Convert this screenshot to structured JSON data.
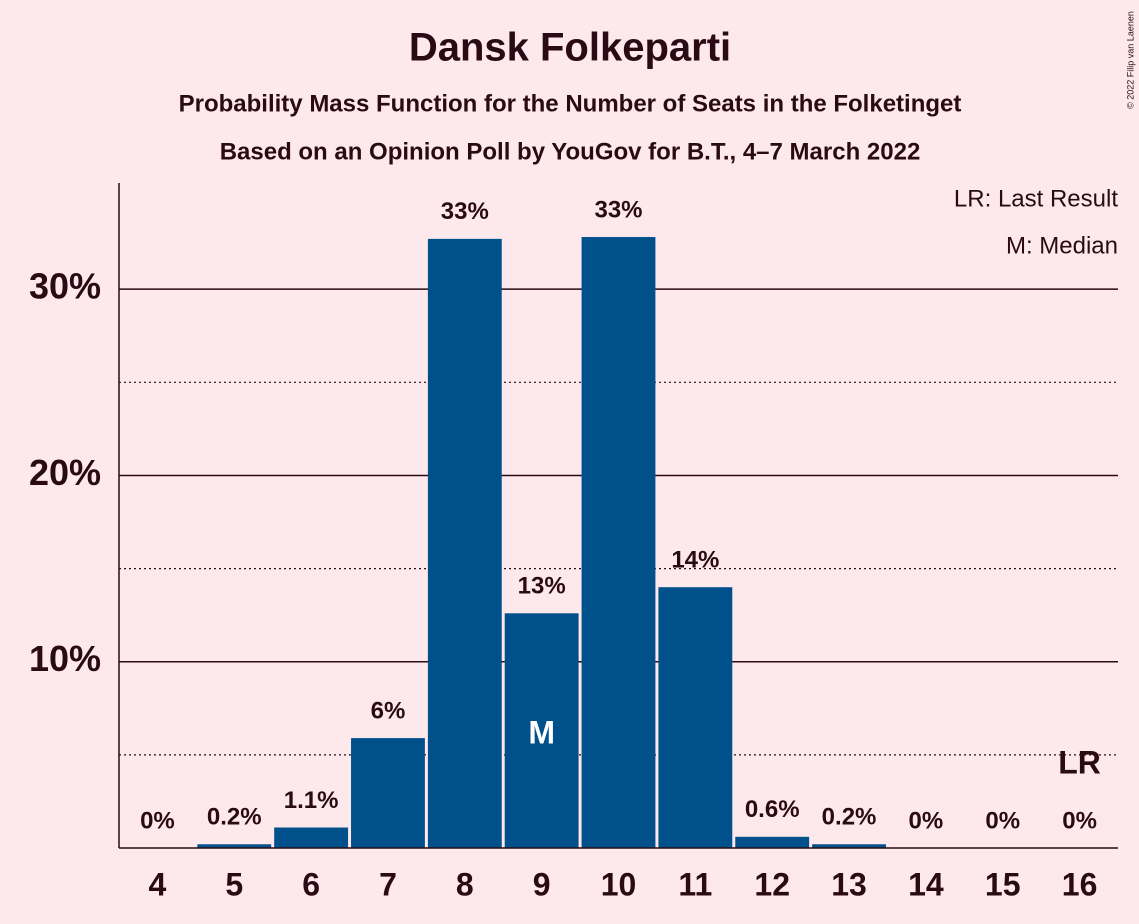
{
  "chart_data": {
    "type": "bar",
    "title": "Dansk Folkeparti",
    "subtitle": "Probability Mass Function for the Number of Seats in the Folketinget",
    "subtitle2": "Based on an Opinion Poll by YouGov for B.T., 4–7 March 2022",
    "copyright": "© 2022 Filip van Laenen",
    "legend": [
      "LR: Last Result",
      "M: Median"
    ],
    "x": [
      4,
      5,
      6,
      7,
      8,
      9,
      10,
      11,
      12,
      13,
      14,
      15,
      16
    ],
    "xlim": [
      3.5,
      16.5
    ],
    "xticks": [
      4,
      5,
      6,
      7,
      8,
      9,
      10,
      11,
      12,
      13,
      14,
      15,
      16
    ],
    "values": [
      0,
      0.2,
      1.1,
      5.9,
      32.7,
      12.6,
      32.8,
      14.0,
      0.6,
      0.2,
      0,
      0,
      0
    ],
    "value_labels": [
      "0%",
      "0.2%",
      "1.1%",
      "6%",
      "33%",
      "13%",
      "33%",
      "14%",
      "0.6%",
      "0.2%",
      "0%",
      "0%",
      "0%"
    ],
    "color": "#00508c",
    "ylim": [
      0,
      35.7
    ],
    "yticks": [
      {
        "value": 10,
        "label": "10%"
      },
      {
        "value": 20,
        "label": "20%"
      },
      {
        "value": 30,
        "label": "30%"
      }
    ],
    "minor_yticks": [
      5,
      15,
      25
    ],
    "grid": true,
    "annotations": [
      {
        "text": "M",
        "x": 9,
        "color": "#ffffff"
      },
      {
        "text": "LR",
        "x": 16,
        "color": "#2a0a14"
      }
    ]
  }
}
